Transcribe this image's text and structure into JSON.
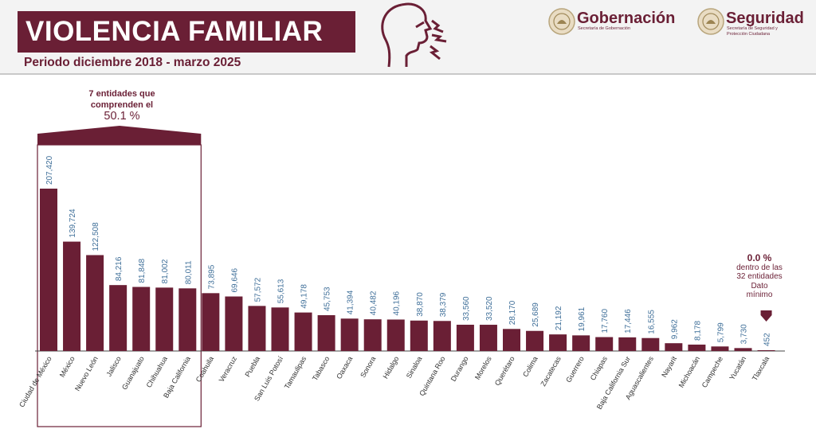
{
  "header": {
    "title": "VIOLENCIA FAMILIAR",
    "subtitle": "Periodo diciembre 2018 - marzo 2025",
    "logos": [
      {
        "name": "Gobernación",
        "sub": "Secretaría de Gobernación"
      },
      {
        "name": "Seguridad",
        "sub": "Secretaría de Seguridad y Protección Ciudadana"
      }
    ],
    "icon": "person-shouting-icon"
  },
  "colors": {
    "brand": "#6a1f35",
    "value_label": "#3f6f99",
    "axis": "#444444"
  },
  "callouts": {
    "top_group": {
      "line1": "7 entidades que",
      "line2": "comprenden el",
      "pct": "50.1 %"
    },
    "min": {
      "pct": "0.0 %",
      "line1": "dentro de las",
      "line2": "32 entidades",
      "line3": "Dato",
      "line4": "mínimo"
    }
  },
  "chart_data": {
    "type": "bar",
    "title": "VIOLENCIA FAMILIAR",
    "subtitle": "Periodo diciembre 2018 - marzo 2025",
    "xlabel": "",
    "ylabel": "",
    "ylim": [
      0,
      220000
    ],
    "grid": false,
    "categories": [
      "Ciudad de México",
      "México",
      "Nuevo León",
      "Jalisco",
      "Guanajuato",
      "Chihuahua",
      "Baja California",
      "Coahuila",
      "Veracruz",
      "Puebla",
      "San Luis Potosí",
      "Tamaulipas",
      "Tabasco",
      "Oaxaca",
      "Sonora",
      "Hidalgo",
      "Sinaloa",
      "Quintana Roo",
      "Durango",
      "Morelos",
      "Querétaro",
      "Colima",
      "Zacatecas",
      "Guerrero",
      "Chiapas",
      "Baja California Sur",
      "Aguascalientes",
      "Nayarit",
      "Michoacán",
      "Campeche",
      "Yucatán",
      "Tlaxcala"
    ],
    "values": [
      207420,
      139724,
      122508,
      84216,
      81848,
      81002,
      80011,
      73895,
      69646,
      57572,
      55613,
      49178,
      45753,
      41394,
      40482,
      40196,
      38870,
      38379,
      33560,
      33520,
      28170,
      25689,
      21192,
      19961,
      17760,
      17446,
      16555,
      9962,
      8178,
      5799,
      3730,
      452
    ],
    "value_labels": [
      "207,420",
      "139,724",
      "122,508",
      "84,216",
      "81,848",
      "81,002",
      "80,011",
      "73,895",
      "69,646",
      "57,572",
      "55,613",
      "49,178",
      "45,753",
      "41,394",
      "40,482",
      "40,196",
      "38,870",
      "38,379",
      "33,560",
      "33,520",
      "28,170",
      "25,689",
      "21,192",
      "19,961",
      "17,760",
      "17,446",
      "16,555",
      "9,962",
      "8,178",
      "5,799",
      "3,730",
      "452"
    ],
    "highlight_group": {
      "first": 0,
      "last": 6
    }
  }
}
